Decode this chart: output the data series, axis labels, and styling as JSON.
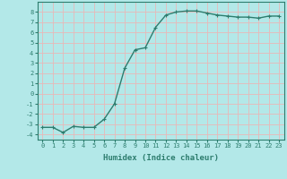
{
  "x": [
    0,
    1,
    2,
    3,
    4,
    5,
    6,
    7,
    8,
    9,
    10,
    11,
    12,
    13,
    14,
    15,
    16,
    17,
    18,
    19,
    20,
    21,
    22,
    23
  ],
  "y": [
    -3.3,
    -3.3,
    -3.8,
    -3.2,
    -3.3,
    -3.3,
    -2.5,
    -1.0,
    2.5,
    4.3,
    4.5,
    6.5,
    7.7,
    8.0,
    8.1,
    8.1,
    7.9,
    7.7,
    7.6,
    7.5,
    7.5,
    7.4,
    7.6,
    7.6
  ],
  "line_color": "#2d7d6e",
  "marker": "+",
  "markersize": 3.5,
  "linewidth": 1.0,
  "bg_color": "#b3e8e8",
  "grid_color": "#e8b8b8",
  "xlabel": "Humidex (Indice chaleur)",
  "ylabel": "",
  "xlim": [
    -0.5,
    23.5
  ],
  "ylim": [
    -4.5,
    9.0
  ],
  "xticks": [
    0,
    1,
    2,
    3,
    4,
    5,
    6,
    7,
    8,
    9,
    10,
    11,
    12,
    13,
    14,
    15,
    16,
    17,
    18,
    19,
    20,
    21,
    22,
    23
  ],
  "yticks": [
    -4,
    -3,
    -2,
    -1,
    0,
    1,
    2,
    3,
    4,
    5,
    6,
    7,
    8
  ],
  "tick_fontsize": 5.0,
  "xlabel_fontsize": 6.5,
  "axis_color": "#2d7d6e",
  "markeredgewidth": 0.8
}
